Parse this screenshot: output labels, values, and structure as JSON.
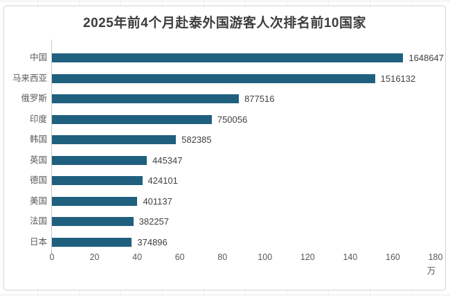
{
  "chart_data": {
    "type": "bar",
    "orientation": "horizontal",
    "title": "2025年前4个月赴泰外国游客人次排名前10国家",
    "categories": [
      "中国",
      "马来西亚",
      "俄罗斯",
      "印度",
      "韩国",
      "英国",
      "德国",
      "美国",
      "法国",
      "日本"
    ],
    "values": [
      1648647,
      1516132,
      877516,
      750056,
      582385,
      445347,
      424101,
      401137,
      382257,
      374896
    ],
    "data_labels": [
      "1648647",
      "1516132",
      "877516",
      "750056",
      "582385",
      "445347",
      "424101",
      "401137",
      "382257",
      "374896"
    ],
    "x_ticks": [
      "0",
      "20",
      "40",
      "60",
      "80",
      "100",
      "120",
      "140",
      "160",
      "180"
    ],
    "x_unit": "万",
    "xlim": [
      0,
      1800000
    ],
    "grid": false,
    "legend": "none",
    "bar_color": "#20607f",
    "axis_color": "#c9c9c9",
    "title_color": "#3c3c3c",
    "label_color": "#595959",
    "value_color": "#3f3f3f"
  }
}
